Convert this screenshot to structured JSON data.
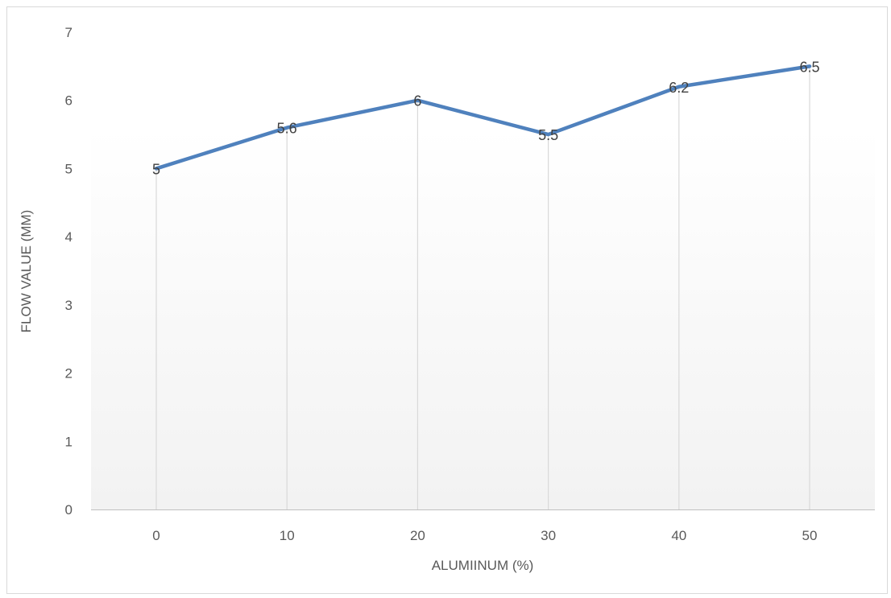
{
  "chart_data": {
    "type": "line",
    "title": "",
    "xlabel": "ALUMIINUM (%)",
    "ylabel": "FLOW VALUE (MM)",
    "categories": [
      "0",
      "10",
      "20",
      "30",
      "40",
      "50"
    ],
    "series": [
      {
        "values": [
          5,
          5.6,
          6,
          5.5,
          6.2,
          6.5
        ],
        "data_labels": [
          "5",
          "5.6",
          "6",
          "5.5",
          "6.2",
          "6.5"
        ],
        "color": "#4f81bd"
      }
    ],
    "ylim": [
      0,
      7
    ],
    "yticks": [
      "0",
      "1",
      "2",
      "3",
      "4",
      "5",
      "6",
      "7"
    ],
    "grid": "vertical drop lines at each category",
    "drop_line_color": "#d9d9d9",
    "background_gradient": [
      "#ffffff",
      "#f2f2f2"
    ],
    "legend": "none"
  }
}
